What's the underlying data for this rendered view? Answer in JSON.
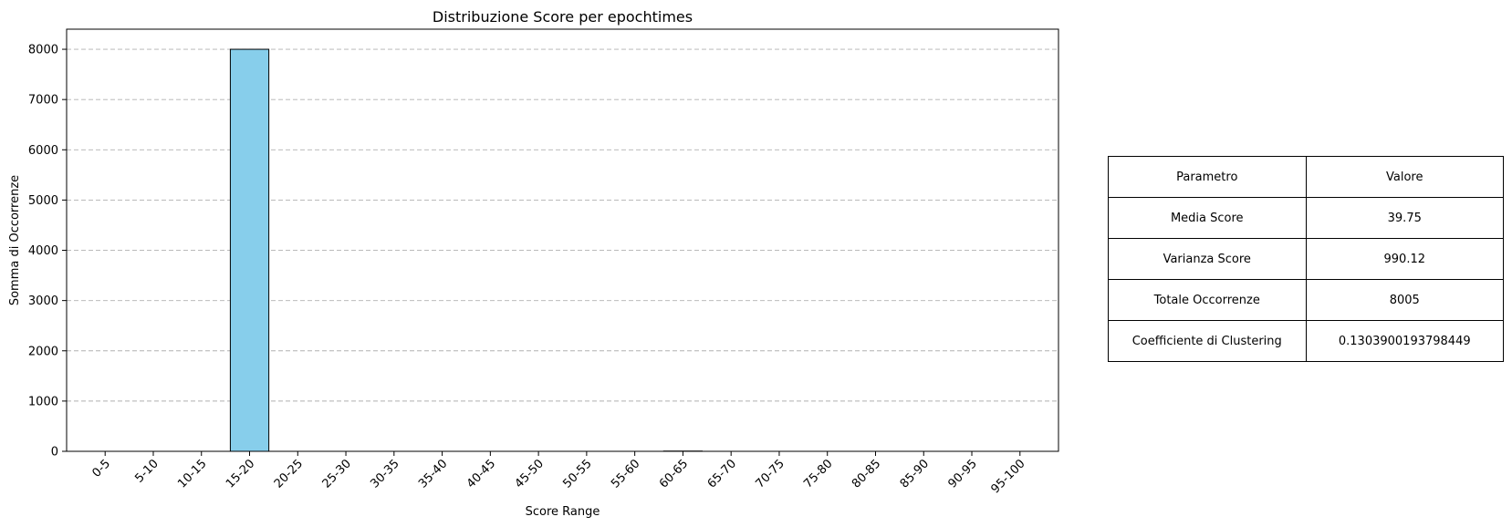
{
  "chart_data": {
    "type": "bar",
    "title": "Distribuzione Score per epochtimes",
    "xlabel": "Score Range",
    "ylabel": "Somma di Occorrenze",
    "categories": [
      "0-5",
      "5-10",
      "10-15",
      "15-20",
      "20-25",
      "25-30",
      "30-35",
      "35-40",
      "40-45",
      "45-50",
      "50-55",
      "55-60",
      "60-65",
      "65-70",
      "70-75",
      "75-80",
      "80-85",
      "85-90",
      "90-95",
      "95-100"
    ],
    "values": [
      0,
      0,
      0,
      8000,
      0,
      0,
      0,
      0,
      0,
      0,
      0,
      0,
      5,
      0,
      0,
      0,
      0,
      0,
      0,
      0
    ],
    "ylim": [
      0,
      8400
    ],
    "yticks": [
      0,
      1000,
      2000,
      3000,
      4000,
      5000,
      6000,
      7000,
      8000
    ],
    "grid": "y-dashed",
    "colors": {
      "bar": "#87ceeb",
      "edge": "#000000",
      "grid": "#b0b0b0"
    }
  },
  "table": {
    "rows": [
      [
        "Parametro",
        "Valore"
      ],
      [
        "Media Score",
        "39.75"
      ],
      [
        "Varianza Score",
        "990.12"
      ],
      [
        "Totale Occorrenze",
        "8005"
      ],
      [
        "Coefficiente di Clustering",
        "0.1303900193798449"
      ]
    ]
  }
}
